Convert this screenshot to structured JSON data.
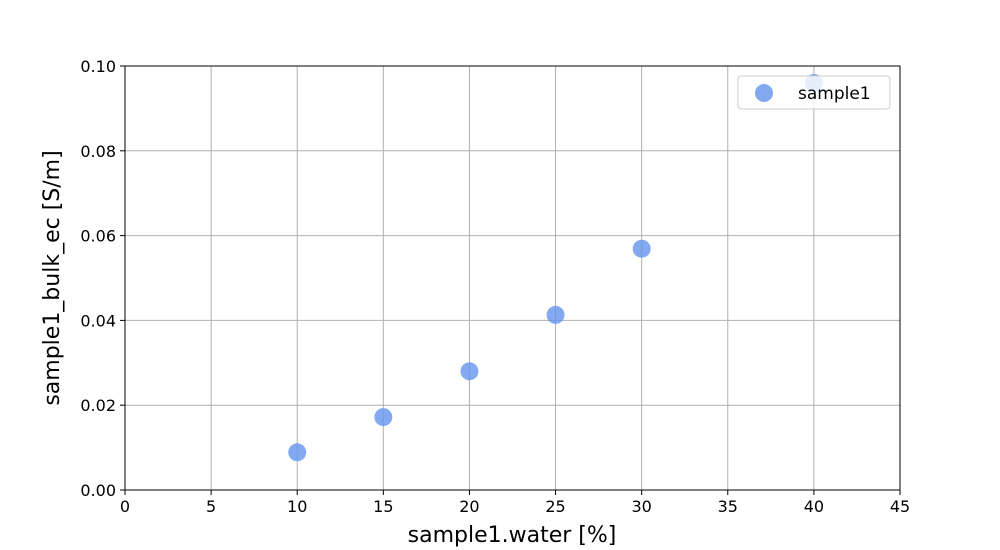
{
  "chart_data": {
    "type": "scatter",
    "title": "",
    "xlabel": "sample1.water [%]",
    "ylabel": "sample1_bulk_ec [S/m]",
    "xlim": [
      0,
      45
    ],
    "ylim": [
      0,
      0.1
    ],
    "xticks": [
      "0",
      "5",
      "10",
      "15",
      "20",
      "25",
      "30",
      "35",
      "40",
      "45"
    ],
    "yticks": [
      "0.00",
      "0.02",
      "0.04",
      "0.06",
      "0.08",
      "0.10"
    ],
    "grid": true,
    "legend_position": "top-right",
    "series": [
      {
        "name": "sample1",
        "color": "#6495ed",
        "x": [
          10,
          15,
          20,
          25,
          30,
          40
        ],
        "y": [
          0.0089,
          0.0172,
          0.028,
          0.0413,
          0.0569,
          0.096
        ]
      }
    ]
  }
}
